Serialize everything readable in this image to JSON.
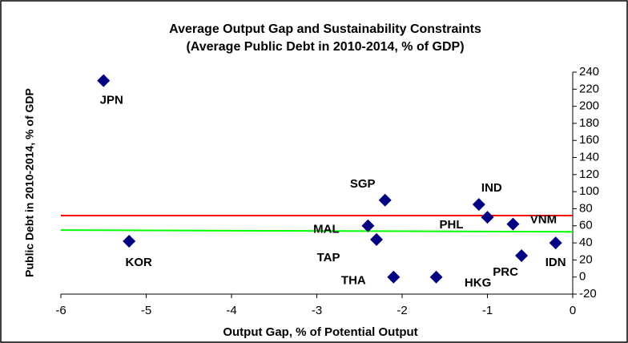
{
  "chart_data": {
    "type": "scatter",
    "title": "Average Output Gap and Sustainability Constraints",
    "subtitle": "(Average Public Debt in 2010-2014, % of GDP)",
    "x_label": "Output Gap, % of Potential Output",
    "y_label": "Public Debt  in 2010-2014, % of GDP",
    "color": "#000080",
    "labels": [
      "JPN",
      "KOR",
      "SGP",
      "MAL",
      "TAP",
      "THA",
      "HKG",
      "IND",
      "PHL",
      "VNM",
      "PRC",
      "IDN"
    ],
    "x": [
      -5.5,
      -5.2,
      -2.2,
      -2.4,
      -2.3,
      -2.1,
      -1.6,
      -1.1,
      -1.0,
      -0.7,
      -0.6,
      -0.2
    ],
    "values": [
      230,
      42,
      90,
      60,
      44,
      0,
      0,
      85,
      70,
      62,
      25,
      40
    ],
    "lines": [
      {
        "color": "#ff0000",
        "x": [
          -6,
          0
        ],
        "values": [
          72,
          72
        ]
      },
      {
        "color": "#00ff00",
        "x": [
          -6,
          0
        ],
        "values": [
          55,
          53
        ]
      }
    ],
    "xlim": [
      -6,
      0
    ],
    "xticks": [
      -6,
      -5,
      -4,
      -3,
      -2,
      -1,
      0
    ],
    "ylim": [
      -20,
      240
    ],
    "yticks": [
      -20,
      0,
      20,
      40,
      60,
      80,
      100,
      120,
      140,
      160,
      180,
      200,
      220,
      240
    ],
    "y_axis_side": "right"
  }
}
